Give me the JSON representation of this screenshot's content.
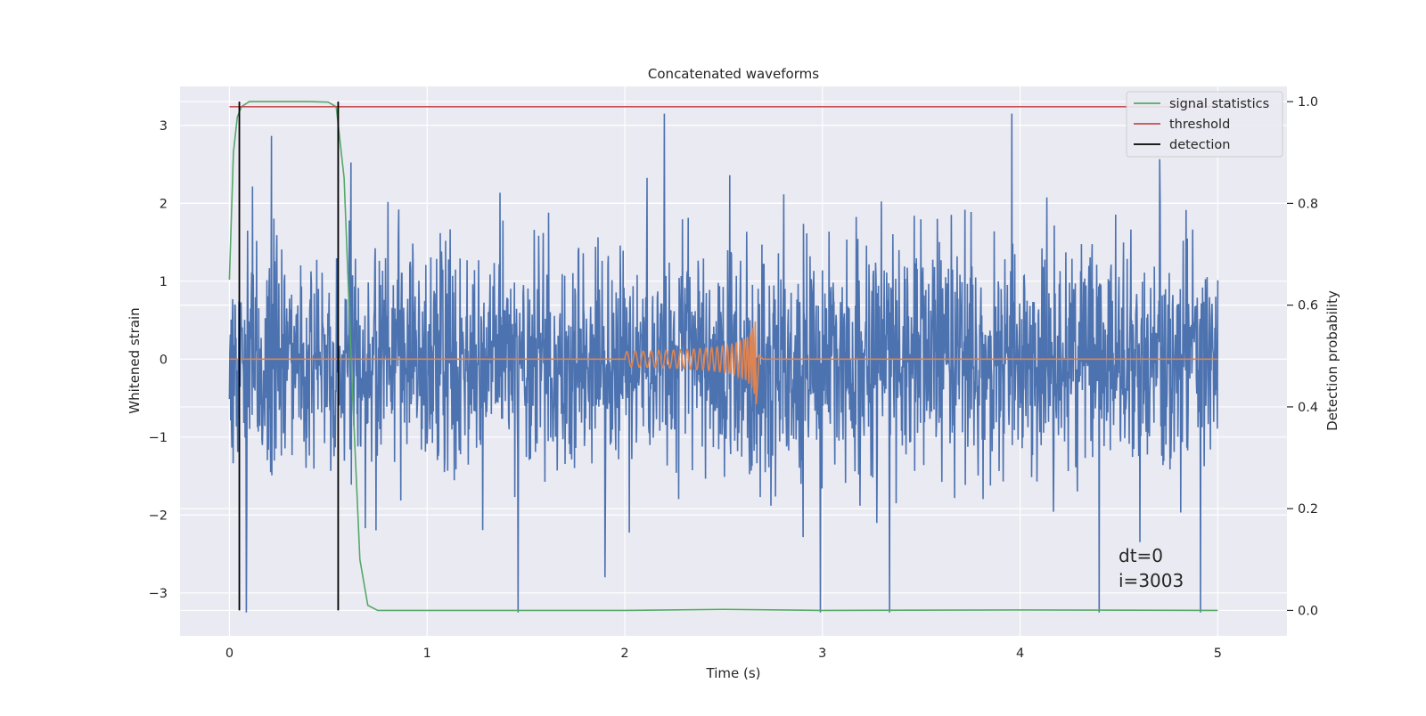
{
  "chart_data": {
    "type": "line",
    "title": "Concatenated waveforms",
    "xlabel": "Time (s)",
    "ylabel": "Whitened strain",
    "y2label": "Detection probability",
    "xlim": [
      -0.25,
      5.35
    ],
    "ylim": [
      -3.55,
      3.5
    ],
    "y2lim": [
      -0.05,
      1.03
    ],
    "xticks": [
      0,
      1,
      2,
      3,
      4,
      5
    ],
    "yticks": [
      -3,
      -2,
      -1,
      0,
      1,
      2,
      3
    ],
    "y2ticks": [
      0.0,
      0.2,
      0.4,
      0.6,
      0.8,
      1.0
    ],
    "xtick_labels": [
      "0",
      "1",
      "2",
      "3",
      "4",
      "5"
    ],
    "ytick_labels": [
      "−3",
      "−2",
      "−1",
      "0",
      "1",
      "2",
      "3"
    ],
    "y2tick_labels": [
      "0.0",
      "0.2",
      "0.4",
      "0.6",
      "0.8",
      "1.0"
    ],
    "grid": true,
    "legend_position": "top-right",
    "legend": [
      "signal statistics",
      "threshold",
      "detection"
    ],
    "annotations": [
      "dt=0",
      "i=3003"
    ],
    "series": [
      {
        "name": "strain",
        "color": "#4c72b0",
        "axis": "left",
        "x_range": [
          0,
          5
        ],
        "y_range": [
          -3.25,
          3.15
        ],
        "description_level": "dense noise"
      },
      {
        "name": "injected signal",
        "color": "#dd8452",
        "axis": "left",
        "x_start": 2.0,
        "x_peak": 2.66,
        "peak_value": 0.47,
        "min_value": -0.58
      },
      {
        "name": "signal statistics",
        "color": "#55a868",
        "axis": "right",
        "x": [
          0,
          0.02,
          0.04,
          0.06,
          0.1,
          0.2,
          0.4,
          0.5,
          0.54,
          0.58,
          0.62,
          0.66,
          0.7,
          0.75,
          1,
          2,
          2.5,
          3,
          4,
          5
        ],
        "y": [
          0.65,
          0.9,
          0.97,
          0.99,
          1.0,
          1.0,
          1.0,
          0.999,
          0.99,
          0.85,
          0.45,
          0.1,
          0.01,
          0.0,
          0.0,
          0.0,
          0.002,
          0.0,
          0.001,
          0.0
        ]
      },
      {
        "name": "threshold",
        "color": "#c44e52",
        "axis": "right",
        "value": 0.99
      },
      {
        "name": "detection",
        "color": "#000000",
        "axis": "right",
        "x": [
          0.05,
          0.55
        ]
      }
    ]
  }
}
